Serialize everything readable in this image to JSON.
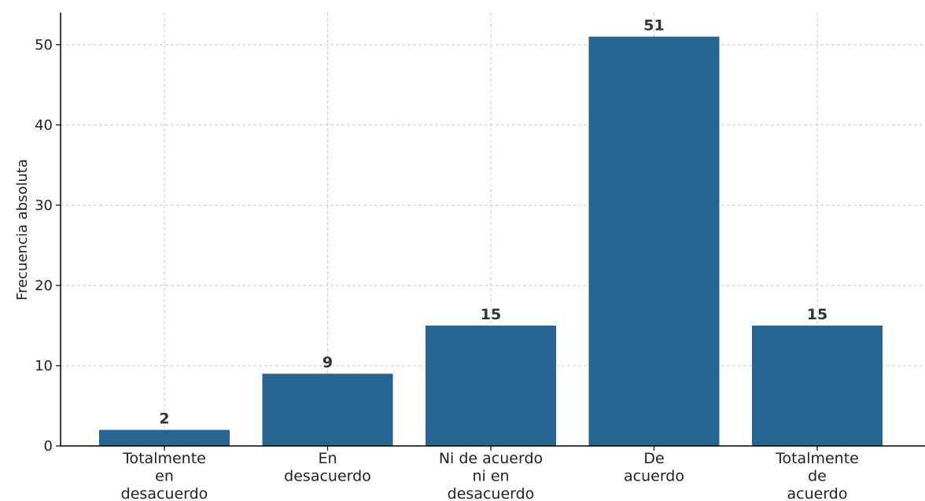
{
  "chart_data": {
    "type": "bar",
    "categories": [
      [
        "Totalmente",
        "en",
        "desacuerdo"
      ],
      [
        "En",
        "desacuerdo"
      ],
      [
        "Ni de acuerdo",
        "ni en",
        "desacuerdo"
      ],
      [
        "De",
        "acuerdo"
      ],
      [
        "Totalmente",
        "de",
        "acuerdo"
      ]
    ],
    "values": [
      2,
      9,
      15,
      51,
      15
    ],
    "ylabel": "Frecuencia absoluta",
    "xlabel": "",
    "ylim": [
      0,
      54
    ],
    "yticks": [
      0,
      10,
      20,
      30,
      40,
      50
    ],
    "grid": true,
    "bar_color": "#276491"
  }
}
